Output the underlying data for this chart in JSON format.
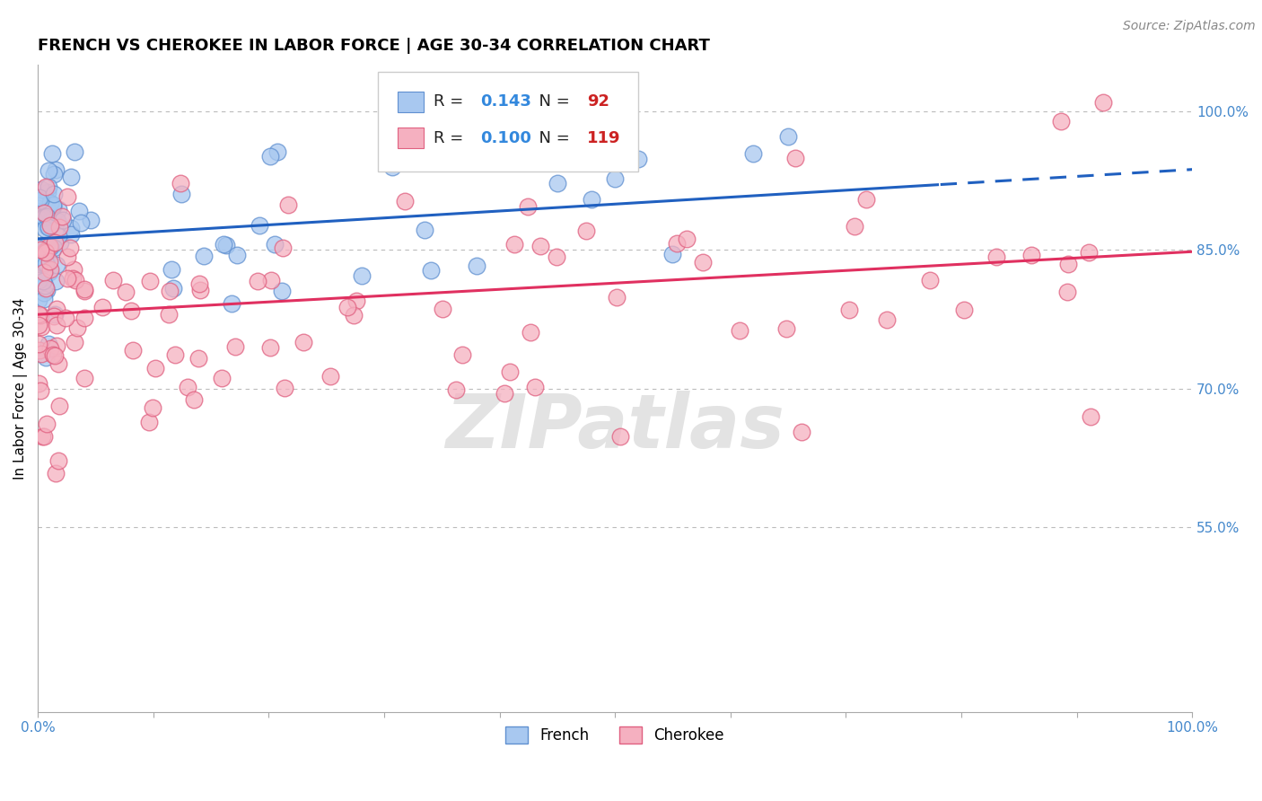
{
  "title": "FRENCH VS CHEROKEE IN LABOR FORCE | AGE 30-34 CORRELATION CHART",
  "source": "Source: ZipAtlas.com",
  "ylabel": "In Labor Force | Age 30-34",
  "xlim": [
    0.0,
    1.0
  ],
  "ylim": [
    0.35,
    1.05
  ],
  "yticks_right": [
    0.55,
    0.7,
    0.85,
    1.0
  ],
  "ytick_right_labels": [
    "55.0%",
    "70.0%",
    "85.0%",
    "100.0%"
  ],
  "french_color": "#a8c8f0",
  "cherokee_color": "#f5b0c0",
  "french_edge_color": "#6090d0",
  "cherokee_edge_color": "#e06080",
  "trend_blue": "#2060c0",
  "trend_pink": "#e03060",
  "legend_R_french": "0.143",
  "legend_N_french": "92",
  "legend_R_cherokee": "0.100",
  "legend_N_cherokee": "119",
  "watermark": "ZIPatlas",
  "grid_color": "#bbbbbb",
  "bg_color": "#ffffff",
  "title_fontsize": 13,
  "label_fontsize": 11,
  "tick_fontsize": 11,
  "source_fontsize": 10,
  "french_trend_intercept": 0.862,
  "french_trend_slope": 0.075,
  "french_trend_solid_end": 0.78,
  "cherokee_trend_intercept": 0.78,
  "cherokee_trend_slope": 0.068
}
